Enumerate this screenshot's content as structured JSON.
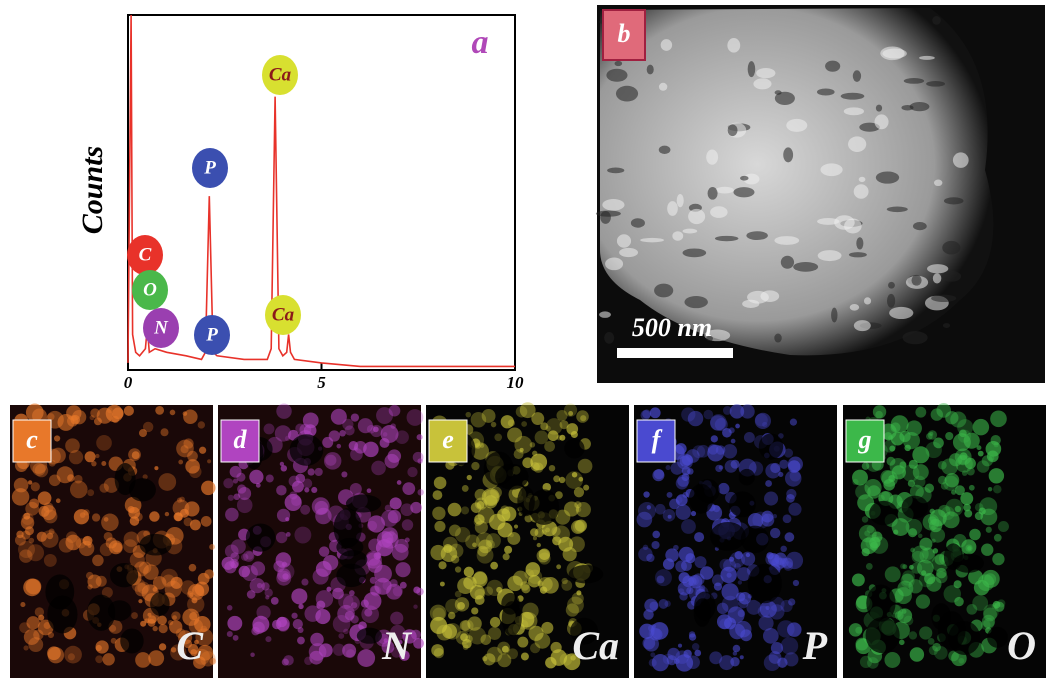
{
  "chart_data": {
    "type": "line",
    "y_label": "Counts",
    "panel_label": "a",
    "x": [
      0,
      0.08,
      0.12,
      0.2,
      0.3,
      0.45,
      0.5,
      0.55,
      0.7,
      1.0,
      1.5,
      1.9,
      2.0,
      2.1,
      2.2,
      2.3,
      3.0,
      3.6,
      3.7,
      3.8,
      3.9,
      4.0,
      4.1,
      4.15,
      4.2,
      4.3,
      5,
      6,
      8,
      10
    ],
    "values": [
      2,
      100,
      10,
      5,
      4,
      6,
      12,
      5,
      6,
      5,
      4,
      3,
      5,
      49,
      5,
      4,
      3,
      3,
      6,
      77,
      6,
      4,
      5,
      10,
      5,
      3,
      2,
      1,
      1,
      1
    ],
    "color": "#e8322a",
    "xlim": [
      0,
      10
    ],
    "xticks": [
      0,
      5,
      10
    ],
    "ylim": [
      0,
      100
    ],
    "annotations": [
      {
        "text": "C",
        "color": "#e8322a"
      },
      {
        "text": "O",
        "color": "#4ab84a"
      },
      {
        "text": "N",
        "color": "#9a3fb0"
      },
      {
        "text": "P",
        "color": "#3b4fb0"
      },
      {
        "text": "P",
        "color": "#3b4fb0"
      },
      {
        "text": "Ca",
        "color": "#d8e030"
      },
      {
        "text": "Ca",
        "color": "#d8e030"
      }
    ]
  },
  "image_panel": {
    "label": "b",
    "scale_bar": "500 nm"
  },
  "maps": [
    {
      "label": "c",
      "element": "C",
      "color": "#e8782a"
    },
    {
      "label": "d",
      "element": "N",
      "color": "#b044c0"
    },
    {
      "label": "e",
      "element": "Ca",
      "color": "#c8c23a"
    },
    {
      "label": "f",
      "element": "P",
      "color": "#4a4ad0"
    },
    {
      "label": "g",
      "element": "O",
      "color": "#3cb84a"
    }
  ]
}
